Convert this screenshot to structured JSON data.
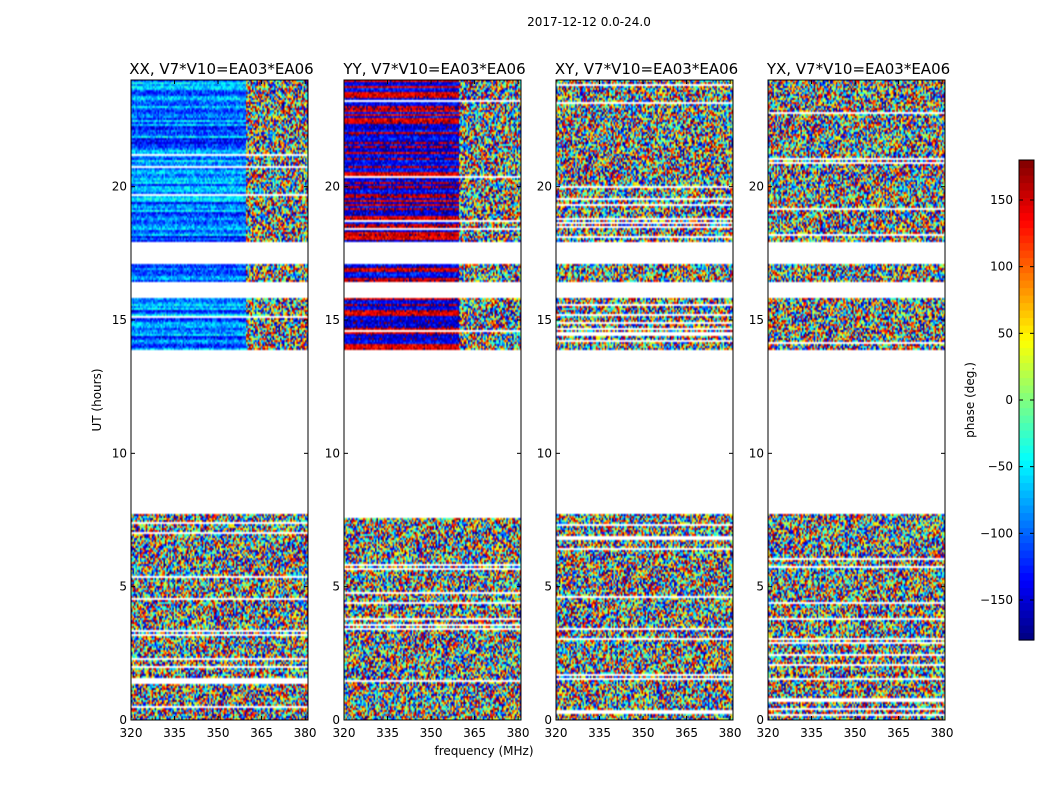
{
  "chart_data": {
    "type": "heatmap",
    "suptitle": "2017-12-12 0.0-24.0",
    "xlabel": "frequency (MHz)",
    "ylabel": "UT (hours)",
    "xlim": [
      320,
      381
    ],
    "ylim": [
      0,
      24
    ],
    "xticks": [
      "320",
      "335",
      "350",
      "365",
      "380"
    ],
    "yticks": [
      "0",
      "5",
      "10",
      "15",
      "20"
    ],
    "panels": [
      {
        "title": "XX, V7*V10=EA03*EA06",
        "mode": "XX"
      },
      {
        "title": "YY, V7*V10=EA03*EA06",
        "mode": "YY"
      },
      {
        "title": "XY, V7*V10=EA03*EA06",
        "mode": "XY"
      },
      {
        "title": "YX, V7*V10=EA03*EA06",
        "mode": "YX"
      }
    ],
    "data_bands_ut": [
      [
        0.0,
        7.7
      ],
      [
        13.9,
        15.8
      ],
      [
        16.4,
        17.1
      ],
      [
        17.9,
        24.0
      ]
    ],
    "colorbar": {
      "label": "phase (deg.)",
      "range": [
        -180,
        180
      ],
      "ticks": [
        "150",
        "100",
        "50",
        "0",
        "−50",
        "−100",
        "−150"
      ],
      "colormap": "jet"
    }
  }
}
